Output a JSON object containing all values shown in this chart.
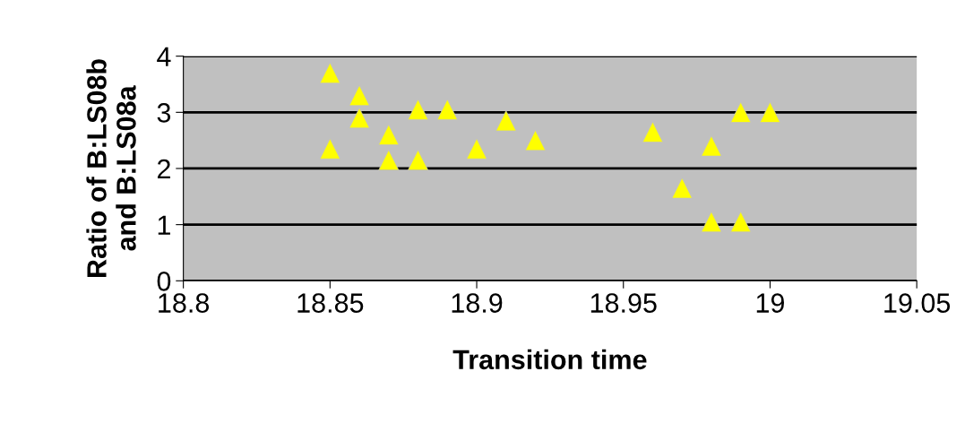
{
  "chart_data": {
    "type": "scatter",
    "xlabel": "Transition time",
    "ylabel": "Ratio of B:LS08b\nand B:LS08a",
    "x": [
      18.85,
      18.85,
      18.86,
      18.86,
      18.87,
      18.87,
      18.88,
      18.88,
      18.89,
      18.9,
      18.91,
      18.92,
      18.96,
      18.97,
      18.98,
      18.98,
      18.99,
      18.99,
      19.0
    ],
    "series": [
      {
        "color": "#ffff00",
        "values": [
          3.7,
          2.35,
          3.3,
          2.9,
          2.6,
          2.15,
          3.05,
          2.15,
          3.05,
          2.35,
          2.85,
          2.5,
          2.65,
          1.65,
          2.4,
          1.05,
          3.0,
          1.05,
          3.0
        ]
      }
    ],
    "xlim": [
      18.8,
      19.05
    ],
    "xticks": [
      18.8,
      18.85,
      18.9,
      18.95,
      19,
      19.05
    ],
    "ylim": [
      0,
      4
    ],
    "yticks": [
      0,
      1,
      2,
      3,
      4
    ],
    "grid": "y",
    "marker": "triangle",
    "legend": false
  }
}
